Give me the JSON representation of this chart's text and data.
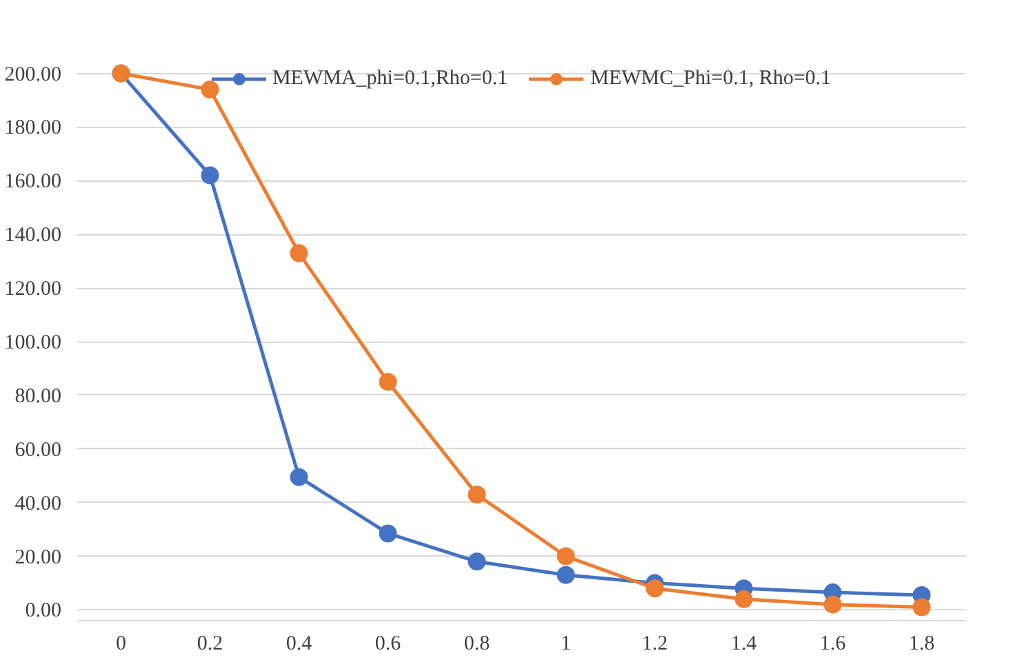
{
  "chart_data": {
    "type": "line",
    "categories": [
      "0",
      "0.2",
      "0.4",
      "0.6",
      "0.8",
      "1",
      "1.2",
      "1.4",
      "1.6",
      "1.8"
    ],
    "series": [
      {
        "name": "MEWMA_phi=0.1,Rho=0.1",
        "color": "#4472c4",
        "values": [
          200,
          162,
          49.5,
          28.5,
          18,
          13,
          10,
          8,
          6.5,
          5.5
        ]
      },
      {
        "name": "MEWMC_Phi=0.1, Rho=0.1",
        "color": "#ed7d31",
        "values": [
          200,
          194,
          133,
          85,
          43,
          20,
          8,
          4,
          2,
          1
        ]
      }
    ],
    "ylim": [
      0,
      200
    ],
    "yticks": [
      {
        "value": 0,
        "label": "0.00"
      },
      {
        "value": 20,
        "label": "20.00"
      },
      {
        "value": 40,
        "label": "40.00"
      },
      {
        "value": 60,
        "label": "60.00"
      },
      {
        "value": 80,
        "label": "80.00"
      },
      {
        "value": 100,
        "label": "100.00"
      },
      {
        "value": 120,
        "label": "120.00"
      },
      {
        "value": 140,
        "label": "140.00"
      },
      {
        "value": 160,
        "label": "160.00"
      },
      {
        "value": 180,
        "label": "180.00"
      },
      {
        "value": 200,
        "label": "200.00"
      }
    ],
    "grid": "y",
    "legend": "top",
    "marker": "circle",
    "line_style": "solid"
  }
}
